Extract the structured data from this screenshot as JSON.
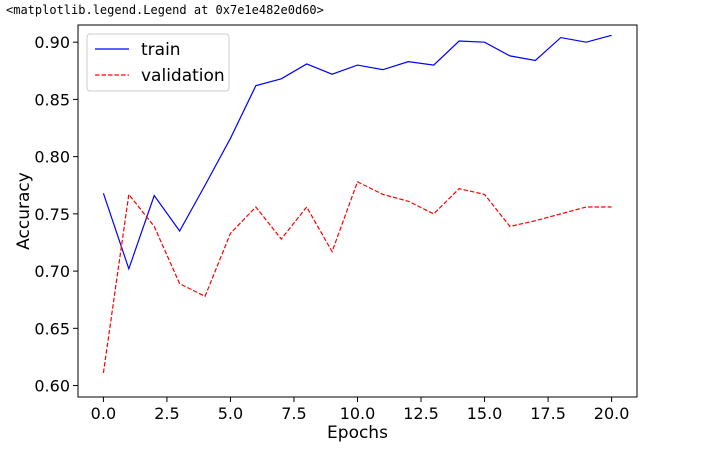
{
  "output_text": "<matplotlib.legend.Legend at 0x7e1e482e0d60>",
  "chart_data": {
    "type": "line",
    "title": "",
    "xlabel": "Epochs",
    "ylabel": "Accuracy",
    "xlim": [
      -1,
      21
    ],
    "ylim": [
      0.59,
      0.915
    ],
    "xticks": [
      0.0,
      2.5,
      5.0,
      7.5,
      10.0,
      12.5,
      15.0,
      17.5,
      20.0
    ],
    "xtick_labels": [
      "0.0",
      "2.5",
      "5.0",
      "7.5",
      "10.0",
      "12.5",
      "15.0",
      "17.5",
      "20.0"
    ],
    "yticks": [
      0.6,
      0.65,
      0.7,
      0.75,
      0.8,
      0.85,
      0.9
    ],
    "ytick_labels": [
      "0.60",
      "0.65",
      "0.70",
      "0.75",
      "0.80",
      "0.85",
      "0.90"
    ],
    "grid": false,
    "legend_position": "upper-left",
    "x": [
      0,
      1,
      2,
      3,
      4,
      5,
      6,
      7,
      8,
      9,
      10,
      11,
      12,
      13,
      14,
      15,
      16,
      17,
      18,
      19,
      20
    ],
    "series": [
      {
        "name": "train",
        "color": "#0000ff",
        "style": "solid",
        "values": [
          0.768,
          0.702,
          0.766,
          0.735,
          0.775,
          0.816,
          0.862,
          0.868,
          0.881,
          0.872,
          0.88,
          0.876,
          0.883,
          0.88,
          0.901,
          0.9,
          0.888,
          0.884,
          0.904,
          0.9,
          0.906
        ]
      },
      {
        "name": "validation",
        "color": "#ff0000",
        "style": "dashed",
        "values": [
          0.611,
          0.767,
          0.739,
          0.689,
          0.678,
          0.733,
          0.756,
          0.728,
          0.756,
          0.717,
          0.778,
          0.767,
          0.761,
          0.75,
          0.772,
          0.767,
          0.739,
          0.744,
          0.75,
          0.756,
          0.756
        ]
      }
    ]
  }
}
